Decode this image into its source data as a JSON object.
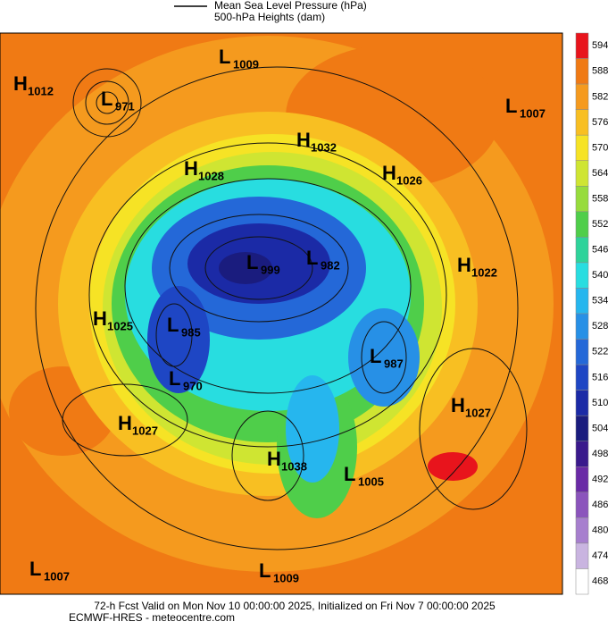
{
  "legend": {
    "pressure": "Mean Sea Level Pressure (hPa)",
    "heights": "500-hPa Heights (dam)"
  },
  "centers": [
    {
      "letter": "H",
      "value": 1012
    },
    {
      "letter": "L",
      "value": 971
    },
    {
      "letter": "L",
      "value": 1009
    },
    {
      "letter": "L",
      "value": 1007
    },
    {
      "letter": "H",
      "value": 1032
    },
    {
      "letter": "H",
      "value": 1028
    },
    {
      "letter": "H",
      "value": 1026
    },
    {
      "letter": "L",
      "value": 999
    },
    {
      "letter": "L",
      "value": 982
    },
    {
      "letter": "H",
      "value": 1022
    },
    {
      "letter": "H",
      "value": 1025
    },
    {
      "letter": "L",
      "value": 985
    },
    {
      "letter": "L",
      "value": 987
    },
    {
      "letter": "L",
      "value": 970
    },
    {
      "letter": "H",
      "value": 1027
    },
    {
      "letter": "H",
      "value": 1027
    },
    {
      "letter": "H",
      "value": 1038
    },
    {
      "letter": "L",
      "value": 1005
    },
    {
      "letter": "L",
      "value": 1007
    },
    {
      "letter": "L",
      "value": 1009
    }
  ],
  "colorbar": {
    "labels": [
      594,
      588,
      582,
      576,
      570,
      564,
      558,
      552,
      546,
      540,
      534,
      528,
      522,
      516,
      510,
      504,
      498,
      492,
      486,
      480,
      474,
      468
    ],
    "colors": [
      "#e8141c",
      "#f07a14",
      "#f59a1e",
      "#f8bf22",
      "#f6e325",
      "#cfe532",
      "#97dc3c",
      "#4fce4a",
      "#2ed39a",
      "#28dde0",
      "#26b6ee",
      "#2790e6",
      "#2468d8",
      "#1e46c4",
      "#1b2aa6",
      "#1a1c7e",
      "#3a1a8c",
      "#6a2aa6",
      "#8b54bc",
      "#a77fce",
      "#c9b4e0",
      "#ffffff"
    ]
  },
  "footer": {
    "line1": "72-h Fcst Valid on Mon Nov 10 00:00:00 2025, Initialized on Fri Nov  7 00:00:00 2025",
    "line2": "ECMWF-HRES  - meteocentre.com"
  }
}
